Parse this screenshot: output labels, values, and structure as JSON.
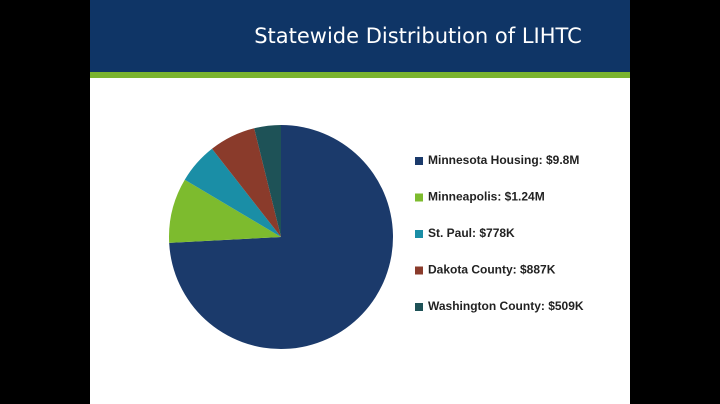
{
  "chart_data": {
    "type": "pie",
    "title": "Statewide Distribution of LIHTC",
    "categories": [
      "Minnesota Housing: $9.8M",
      "Minneapolis: $1.24M",
      "St. Paul: $778K",
      "Dakota County: $887K",
      "Washington County: $509K"
    ],
    "values": [
      9800000,
      1240000,
      778000,
      887000,
      509000
    ],
    "colors": [
      "#1b3a6b",
      "#7dbb2e",
      "#1a8ea6",
      "#8a3b2b",
      "#1e5257"
    ]
  }
}
